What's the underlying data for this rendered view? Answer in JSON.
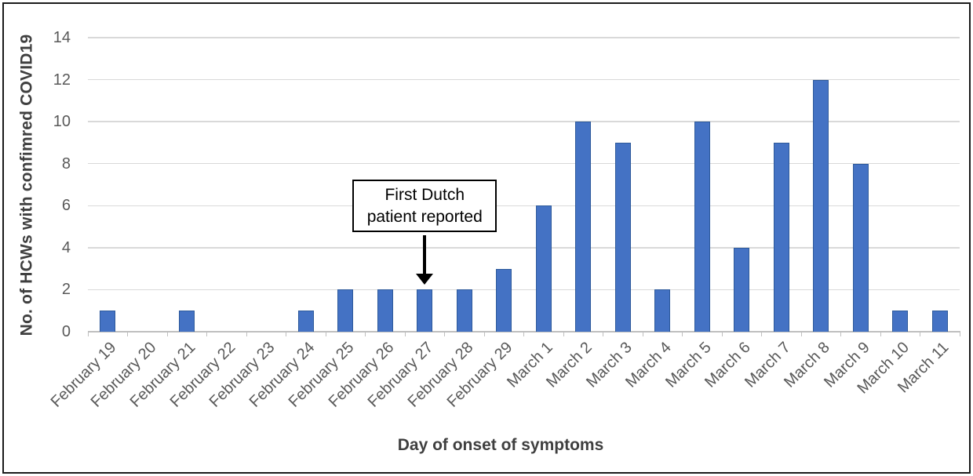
{
  "figure": {
    "background": "#ffffff",
    "border_color": "#1a1a1a"
  },
  "chart_data": {
    "type": "bar",
    "title": "",
    "categories": [
      "February 19",
      "February 20",
      "February 21",
      "February 22",
      "February 23",
      "February 24",
      "February 25",
      "February 26",
      "February 27",
      "February 28",
      "February 29",
      "March 1",
      "March 2",
      "March 3",
      "March 4",
      "March 5",
      "March 6",
      "March 7",
      "March 8",
      "March 9",
      "March 10",
      "March 11"
    ],
    "values": [
      1,
      0,
      1,
      0,
      0,
      1,
      2,
      2,
      2,
      2,
      3,
      6,
      10,
      9,
      2,
      10,
      4,
      9,
      12,
      8,
      1,
      1
    ],
    "xlabel": "Day of onset of symptoms",
    "ylabel": "No. of HCWs with confimred COVID19",
    "ylim": [
      0,
      14
    ],
    "yticks": [
      0,
      2,
      4,
      6,
      8,
      10,
      12,
      14
    ],
    "grid": true,
    "legend": "none",
    "colors": {
      "bar_fill": "#4472C4",
      "bar_border": "#2E5A9B",
      "gridline": "#D9D9D9",
      "axis_line": "#BFBFBF",
      "tick_label": "#595959",
      "axis_title": "#3F3F3F",
      "annotation_border": "#000000",
      "arrow": "#000000"
    }
  },
  "annotation": {
    "line1": "First Dutch",
    "line2": "patient reported",
    "target_category": "February 27"
  }
}
